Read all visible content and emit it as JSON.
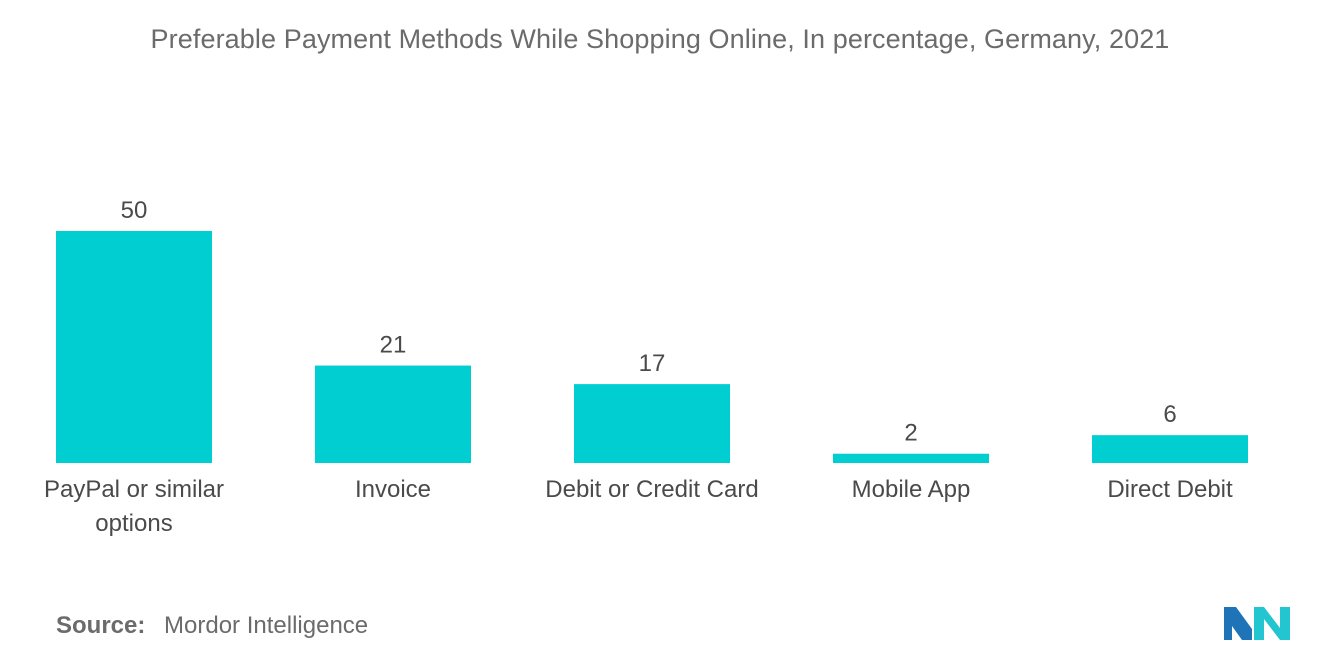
{
  "chart_data": {
    "type": "bar",
    "title": "Preferable Payment Methods While Shopping Online, In percentage, Germany, 2021",
    "categories": [
      [
        "PayPal or similar",
        "options"
      ],
      [
        "Invoice"
      ],
      [
        "Debit or Credit Card"
      ],
      [
        "Mobile App"
      ],
      [
        "Direct Debit"
      ]
    ],
    "values": [
      50,
      21,
      17,
      2,
      6
    ],
    "xlabel": "",
    "ylabel": "",
    "ylim": [
      0,
      50
    ],
    "grid": false,
    "legend": "none",
    "bar_color": "#00CED1",
    "data_labels": true
  },
  "footer": {
    "source_label": "Source:",
    "source_value": "Mordor Intelligence"
  },
  "logo": {
    "name": "mordor-intelligence-logo",
    "color_left": "#1f74b7",
    "color_right": "#22c5d0"
  }
}
